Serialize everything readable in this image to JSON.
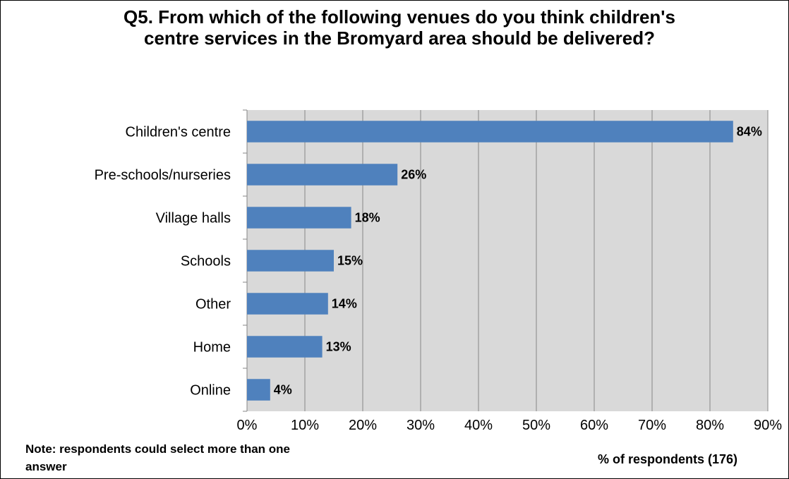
{
  "chart_data": {
    "type": "bar",
    "orientation": "horizontal",
    "title": "Q5. From which of the following venues do you think children's centre services in the Bromyard area should be delivered?",
    "xlabel": "% of respondents (176)",
    "ylabel": "",
    "note": "Note: respondents could select more than one answer",
    "categories": [
      "Children's centre",
      "Pre-schools/nurseries",
      "Village halls",
      "Schools",
      "Other",
      "Home",
      "Online"
    ],
    "values": [
      84,
      26,
      18,
      15,
      14,
      13,
      4
    ],
    "value_labels": [
      "84%",
      "26%",
      "18%",
      "15%",
      "14%",
      "13%",
      "4%"
    ],
    "xlim": [
      0,
      90
    ],
    "ticks": [
      0,
      10,
      20,
      30,
      40,
      50,
      60,
      70,
      80,
      90
    ],
    "tick_labels": [
      "0%",
      "10%",
      "20%",
      "30%",
      "40%",
      "50%",
      "60%",
      "70%",
      "80%",
      "90%"
    ],
    "grid": true,
    "colors": {
      "bar": "#4F81BD",
      "plot_background": "#D9D9D9",
      "gridline": "#868686"
    }
  }
}
